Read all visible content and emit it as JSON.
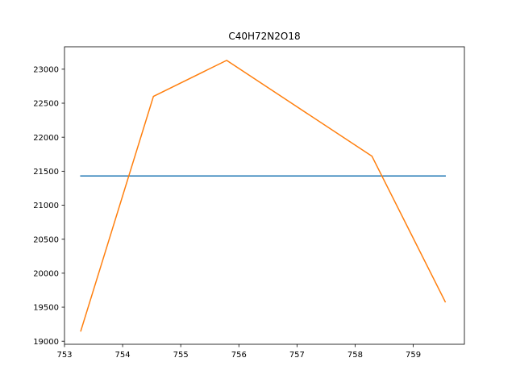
{
  "chart_data": {
    "type": "line",
    "title": "C40H72N2O18",
    "xlabel": "",
    "ylabel": "",
    "xlim": [
      753.0,
      759.88
    ],
    "ylim": [
      18955,
      23330
    ],
    "xticks": [
      753,
      754,
      755,
      756,
      757,
      758,
      759
    ],
    "yticks": [
      19000,
      19500,
      20000,
      20500,
      21000,
      21500,
      22000,
      22500,
      23000
    ],
    "grid": false,
    "legend": "none",
    "series": [
      {
        "color": "#1f77b4",
        "x": [
          753.28,
          759.55
        ],
        "y": [
          21430,
          21430
        ]
      },
      {
        "color": "#ff7f0e",
        "x": [
          753.28,
          754.53,
          755.79,
          758.29,
          759.55
        ],
        "y": [
          19150,
          22600,
          23130,
          21720,
          19580
        ]
      }
    ]
  }
}
